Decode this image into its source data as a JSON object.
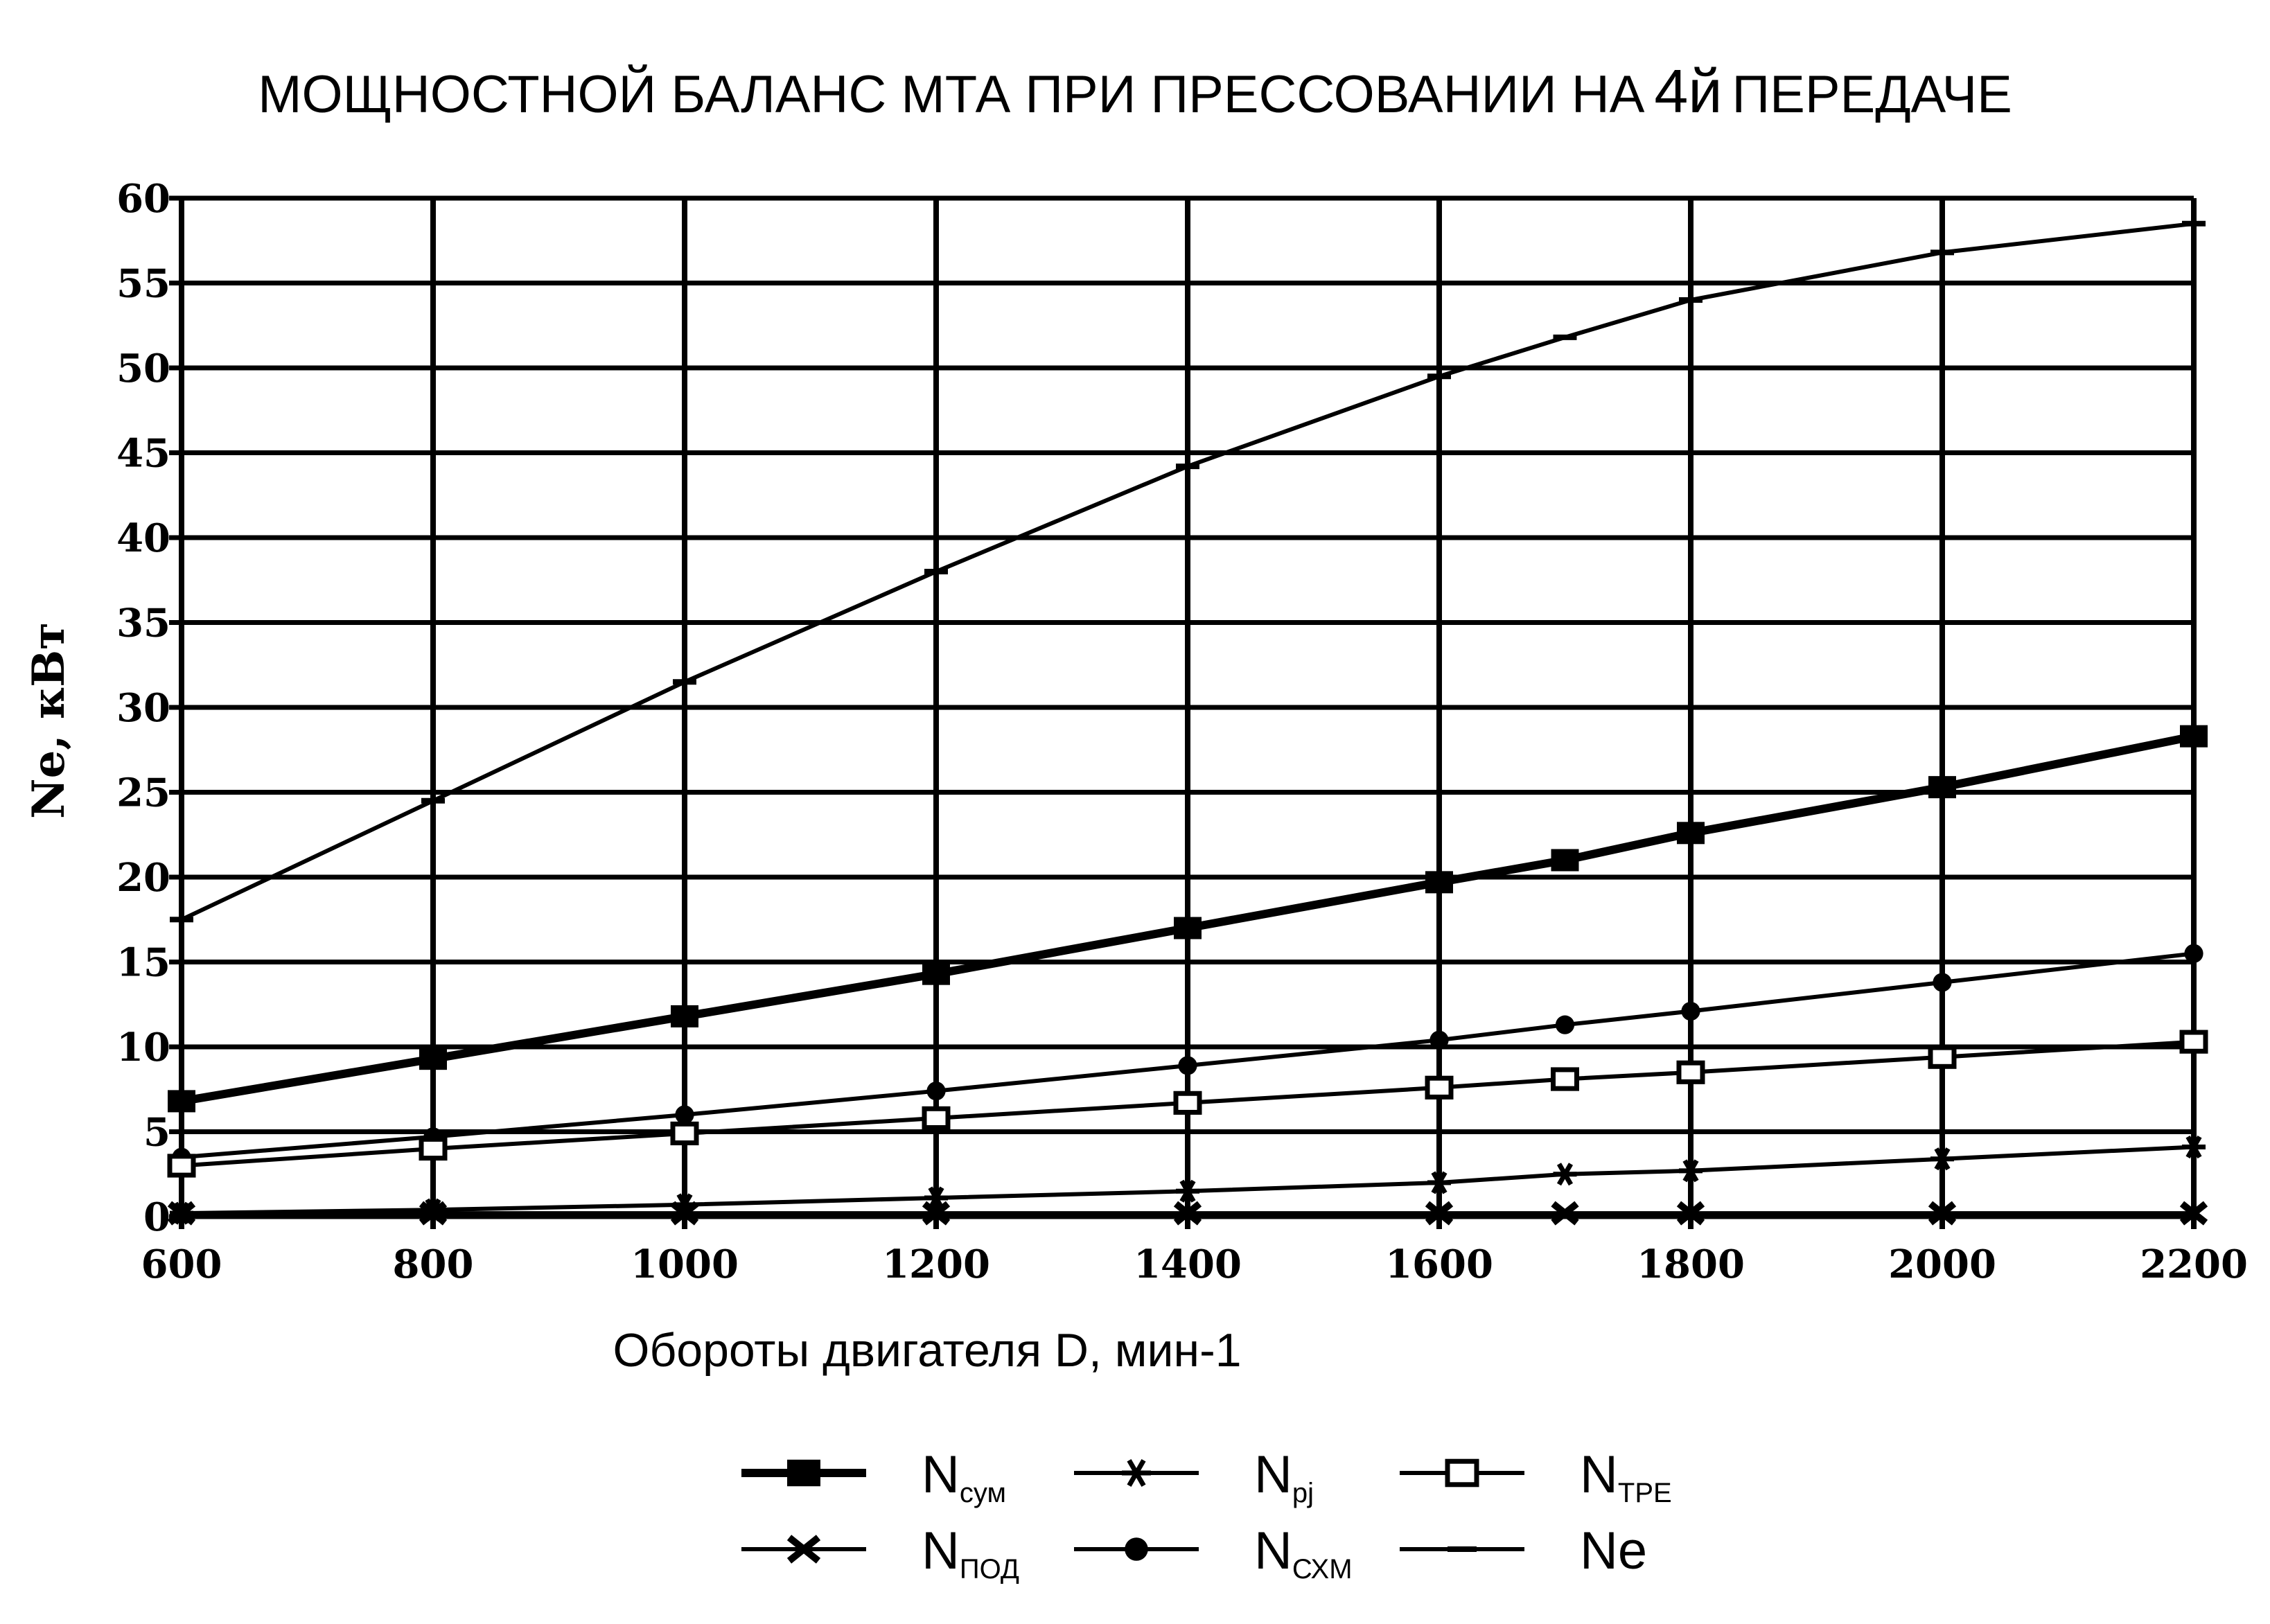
{
  "chart_data": {
    "type": "line",
    "title_main": "МОЩНОСТНОЙ БАЛАНС МТА ПРИ ПРЕССОВАНИИ НА",
    "title_num": "4й",
    "title_end": "ПЕРЕДАЧЕ",
    "xlabel": "Обороты двигателя D, мин-1",
    "ylabel": "Ne,  кВт",
    "xlim": [
      600,
      2200
    ],
    "ylim": [
      0,
      60
    ],
    "x_ticks": [
      "600",
      "800",
      "1000",
      "1200",
      "1400",
      "1600",
      "1800",
      "2000",
      "2200"
    ],
    "y_ticks": [
      "0",
      "5",
      "10",
      "15",
      "20",
      "25",
      "30",
      "35",
      "40",
      "45",
      "50",
      "55",
      "60"
    ],
    "grid": true,
    "legend_position": "bottom",
    "series": [
      {
        "key": "ne",
        "legend_main": "Ne",
        "legend_sub": "",
        "marker": "dash",
        "x": [
          600,
          800,
          1000,
          1200,
          1400,
          1600,
          1700,
          1800,
          2000,
          2200
        ],
        "values": [
          17.5,
          24.5,
          31.5,
          38,
          44.2,
          49.5,
          51.8,
          54,
          56.8,
          58.5
        ]
      },
      {
        "key": "nsum",
        "legend_main": "N",
        "legend_sub": "сум",
        "marker": "square-filled",
        "x": [
          600,
          800,
          1000,
          1200,
          1400,
          1600,
          1700,
          1800,
          2000,
          2200
        ],
        "values": [
          6.8,
          9.3,
          11.8,
          14.3,
          17,
          19.7,
          21,
          22.6,
          25.3,
          28.3
        ]
      },
      {
        "key": "nskhm",
        "legend_main": "N",
        "legend_sub": "СХМ",
        "marker": "dot",
        "x": [
          600,
          800,
          1000,
          1200,
          1400,
          1600,
          1700,
          1800,
          2000,
          2200
        ],
        "values": [
          3.5,
          4.7,
          6,
          7.4,
          8.9,
          10.4,
          11.3,
          12.1,
          13.8,
          15.5
        ]
      },
      {
        "key": "ntpe",
        "legend_main": "N",
        "legend_sub": "ТРЕ",
        "marker": "square-open",
        "x": [
          600,
          800,
          1000,
          1200,
          1400,
          1600,
          1700,
          1800,
          2000,
          2200
        ],
        "values": [
          3,
          4,
          4.9,
          5.8,
          6.7,
          7.6,
          8.1,
          8.5,
          9.4,
          10.3
        ]
      },
      {
        "key": "npj",
        "legend_main": "N",
        "legend_sub": "pj",
        "marker": "asterisk",
        "x": [
          600,
          800,
          1000,
          1200,
          1400,
          1600,
          1700,
          1800,
          2000,
          2200
        ],
        "values": [
          0.2,
          0.4,
          0.7,
          1.1,
          1.5,
          2,
          2.5,
          2.7,
          3.4,
          4.1
        ]
      },
      {
        "key": "npod",
        "legend_main": "N",
        "legend_sub": "ПОД",
        "marker": "x",
        "x": [
          600,
          800,
          1000,
          1200,
          1400,
          1600,
          1700,
          1800,
          2000,
          2200
        ],
        "values": [
          0.2,
          0.2,
          0.2,
          0.2,
          0.2,
          0.2,
          0.2,
          0.2,
          0.2,
          0.2
        ]
      }
    ],
    "legend_layout": [
      [
        "nsum",
        "npj",
        "ntpe"
      ],
      [
        "npod",
        "nskhm",
        "ne"
      ]
    ]
  }
}
